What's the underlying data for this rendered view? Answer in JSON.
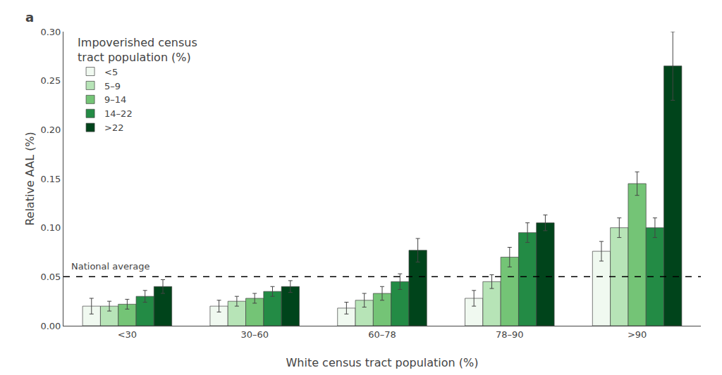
{
  "chart_data": {
    "type": "bar",
    "panel_label": "a",
    "categories": [
      "<30",
      "30–60",
      "60–78",
      "78–90",
      ">90"
    ],
    "series": [
      {
        "name": "<5",
        "color": "#f0f9f0",
        "values": [
          0.02,
          0.02,
          0.018,
          0.028,
          0.076
        ],
        "errors": [
          0.008,
          0.006,
          0.006,
          0.008,
          0.01
        ]
      },
      {
        "name": "5–9",
        "color": "#b7e4b7",
        "values": [
          0.02,
          0.025,
          0.026,
          0.045,
          0.1
        ],
        "errors": [
          0.005,
          0.005,
          0.007,
          0.007,
          0.01
        ]
      },
      {
        "name": "9–14",
        "color": "#74c476",
        "values": [
          0.022,
          0.028,
          0.033,
          0.07,
          0.145
        ],
        "errors": [
          0.005,
          0.005,
          0.007,
          0.01,
          0.012
        ]
      },
      {
        "name": "14–22",
        "color": "#238b45",
        "values": [
          0.03,
          0.035,
          0.045,
          0.095,
          0.1
        ],
        "errors": [
          0.006,
          0.005,
          0.008,
          0.01,
          0.01
        ]
      },
      {
        "name": ">22",
        "color": "#00441b",
        "values": [
          0.04,
          0.04,
          0.077,
          0.105,
          0.265
        ],
        "errors": [
          0.007,
          0.006,
          0.012,
          0.008,
          0.035
        ]
      }
    ],
    "legend_title": "Impoverished census\ntract population (%)",
    "legend": "upper left",
    "xlabel": "White census tract population (%)",
    "ylabel": "Relative AAL (%)",
    "ylim": [
      0,
      0.3
    ],
    "yticks": [
      {
        "value": 0,
        "label": "0.00"
      },
      0.05,
      {
        "value": 0.1,
        "label": "0.10"
      },
      0.15,
      {
        "value": 0.2,
        "label": "0.20"
      },
      0.25,
      {
        "value": 0.3,
        "label": "0.30"
      }
    ],
    "grid": false,
    "reference_line": {
      "value": 0.05,
      "band": 0.004,
      "label": "National average"
    }
  }
}
